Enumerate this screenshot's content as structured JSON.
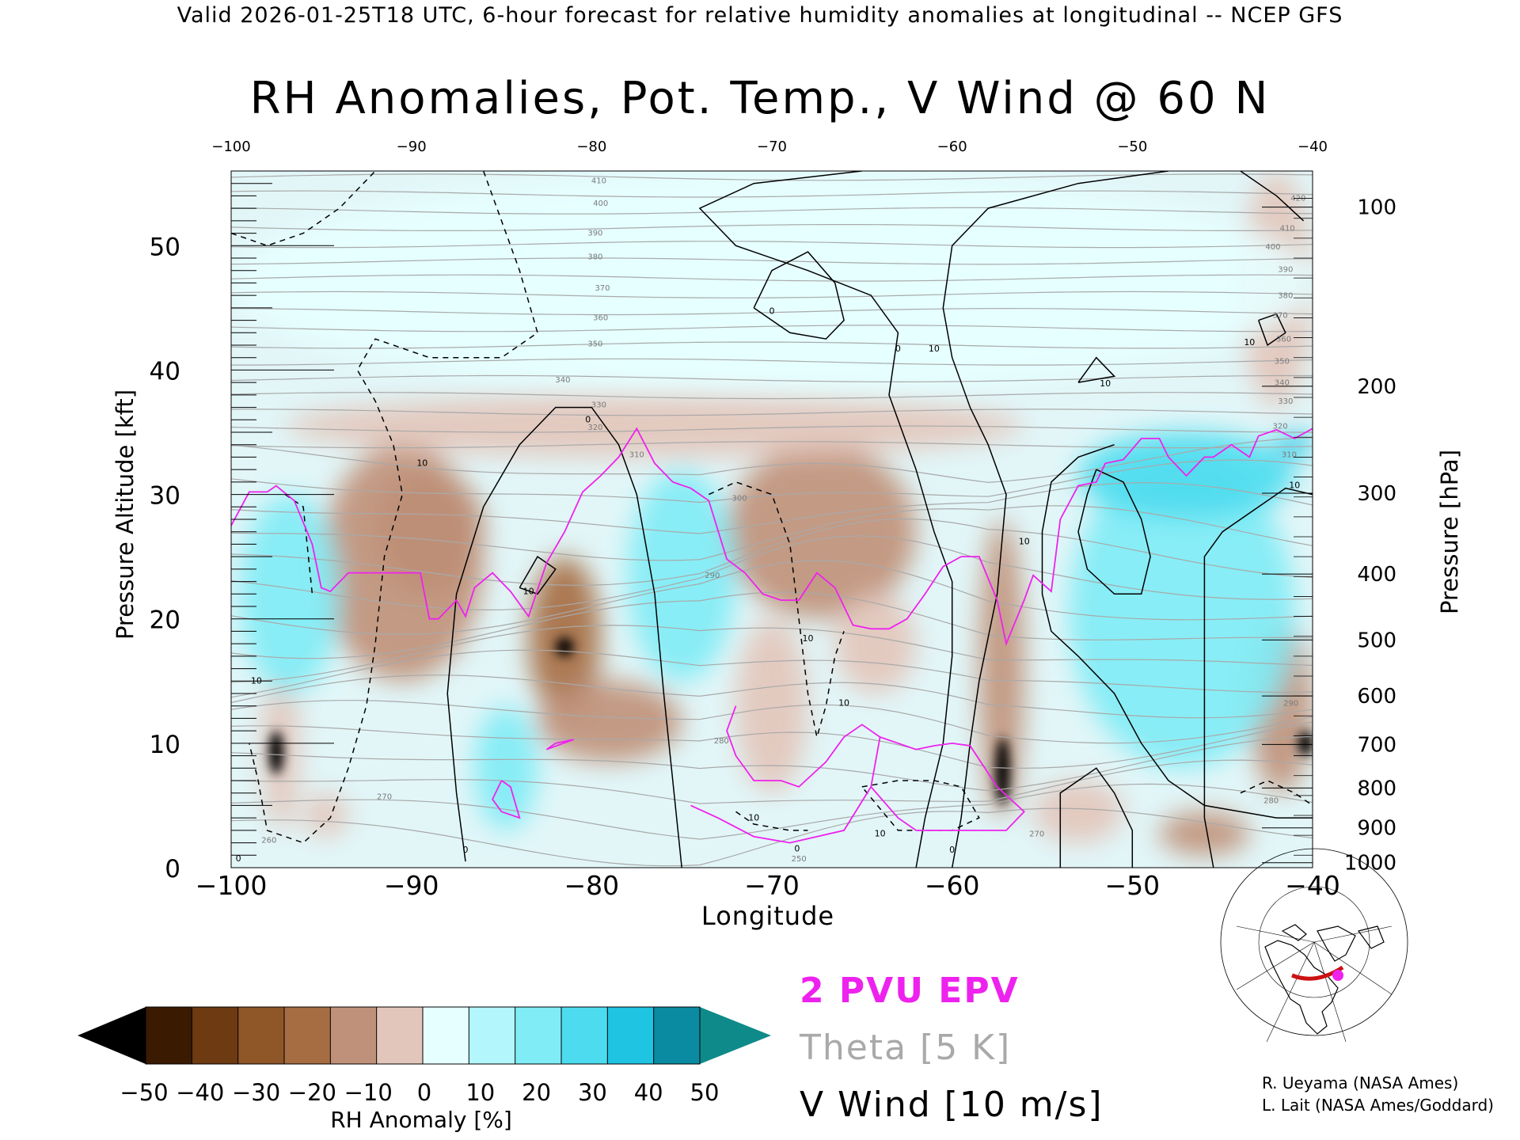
{
  "header": {
    "valid_line": "Valid 2026-01-25T18 UTC, 6-hour forecast for relative humidity anomalies at longitudinal -- NCEP GFS",
    "title": "RH Anomalies, Pot. Temp., V Wind @ 60 N"
  },
  "chart_data": {
    "type": "heatmap",
    "title": "RH Anomalies, Pot. Temp., V Wind @ 60 N",
    "xlabel": "Longitude",
    "ylabel": "Pressure Altitude [kft]",
    "ylabel_right": "Pressure [hPa]",
    "xlim": [
      -100,
      -40
    ],
    "ylim": [
      0,
      56
    ],
    "x_ticks": [
      -100,
      -90,
      -80,
      -70,
      -60,
      -50,
      -40
    ],
    "x_tick_labels": [
      "−100",
      "−90",
      "−80",
      "−70",
      "−60",
      "−50",
      "−40"
    ],
    "y_ticks": [
      0,
      10,
      20,
      30,
      40,
      50
    ],
    "y_tick_labels": [
      "0",
      "10",
      "20",
      "30",
      "40",
      "50"
    ],
    "pressure_ticks": [
      {
        "hPa": "100",
        "kft": 53.1
      },
      {
        "hPa": "200",
        "kft": 38.7
      },
      {
        "hPa": "300",
        "kft": 30.1
      },
      {
        "hPa": "400",
        "kft": 23.6
      },
      {
        "hPa": "500",
        "kft": 18.3
      },
      {
        "hPa": "600",
        "kft": 13.8
      },
      {
        "hPa": "700",
        "kft": 9.9
      },
      {
        "hPa": "800",
        "kft": 6.4
      },
      {
        "hPa": "900",
        "kft": 3.2
      },
      {
        "hPa": "1000",
        "kft": 0.4
      }
    ],
    "rh_anomaly_regions": [
      {
        "value": -50,
        "lon": [
          -97.9,
          -97.1
        ],
        "alt": [
          7.5,
          11.0
        ]
      },
      {
        "value": -50,
        "lon": [
          -82.0,
          -81.0
        ],
        "alt": [
          17.0,
          18.5
        ]
      },
      {
        "value": -50,
        "lon": [
          -57.6,
          -56.8
        ],
        "alt": [
          5.0,
          10.5
        ]
      },
      {
        "value": -50,
        "lon": [
          -40.8,
          -40.0
        ],
        "alt": [
          9.0,
          11.0
        ]
      },
      {
        "value": -30,
        "lon": [
          -92.0,
          -86.0
        ],
        "alt": [
          22.0,
          32.0
        ]
      },
      {
        "value": -30,
        "lon": [
          -83.5,
          -79.5
        ],
        "alt": [
          12.0,
          25.0
        ]
      },
      {
        "value": -20,
        "lon": [
          -95.0,
          -86.0
        ],
        "alt": [
          15.0,
          34.0
        ]
      },
      {
        "value": -20,
        "lon": [
          -83.0,
          -75.0
        ],
        "alt": [
          8.5,
          15.0
        ]
      },
      {
        "value": -20,
        "lon": [
          -72.5,
          -62.0
        ],
        "alt": [
          20.0,
          34.0
        ]
      },
      {
        "value": -20,
        "lon": [
          -58.5,
          -56.0
        ],
        "alt": [
          4.0,
          28.0
        ]
      },
      {
        "value": -20,
        "lon": [
          -43.5,
          -40.0
        ],
        "alt": [
          6.0,
          20.0
        ]
      },
      {
        "value": -20,
        "lon": [
          -48.5,
          -43.5
        ],
        "alt": [
          1.0,
          4.5
        ]
      },
      {
        "value": -10,
        "lon": [
          -98.3,
          -96.2
        ],
        "alt": [
          3.0,
          16.0
        ]
      },
      {
        "value": -10,
        "lon": [
          -96.0,
          -93.5
        ],
        "alt": [
          2.5,
          6.0
        ]
      },
      {
        "value": -10,
        "lon": [
          -72.0,
          -68.0
        ],
        "alt": [
          6.0,
          20.0
        ]
      },
      {
        "value": -10,
        "lon": [
          -66.5,
          -62.0
        ],
        "alt": [
          14.0,
          22.0
        ]
      },
      {
        "value": -10,
        "lon": [
          -55.5,
          -50.5
        ],
        "alt": [
          2.0,
          7.0
        ]
      },
      {
        "value": -5,
        "lon": [
          -97.0,
          -56.0
        ],
        "alt": [
          33.0,
          38.0
        ]
      },
      {
        "value": -5,
        "lon": [
          -44.0,
          -40.0
        ],
        "alt": [
          37.0,
          56.0
        ]
      },
      {
        "value": 5,
        "lon": [
          -100.0,
          -40.0
        ],
        "alt": [
          38.0,
          56.0
        ]
      },
      {
        "value": 20,
        "lon": [
          -78.0,
          -72.0
        ],
        "alt": [
          15.0,
          32.0
        ]
      },
      {
        "value": 20,
        "lon": [
          -86.5,
          -83.0
        ],
        "alt": [
          3.0,
          13.0
        ]
      },
      {
        "value": 20,
        "lon": [
          -53.5,
          -41.0
        ],
        "alt": [
          8.0,
          33.0
        ]
      },
      {
        "value": 20,
        "lon": [
          -99.5,
          -94.0
        ],
        "alt": [
          14.0,
          30.0
        ]
      },
      {
        "value": 30,
        "lon": [
          -53.0,
          -41.0
        ],
        "alt": [
          28.0,
          35.0
        ]
      },
      {
        "value": 40,
        "lon": [
          -42.0,
          -40.0
        ],
        "alt": [
          33.0,
          35.0
        ]
      }
    ],
    "theta_contour_labels": [
      {
        "text": "410",
        "lon": -79.6,
        "alt": 55.0
      },
      {
        "text": "400",
        "lon": -79.5,
        "alt": 53.2
      },
      {
        "text": "390",
        "lon": -79.8,
        "alt": 50.8
      },
      {
        "text": "380",
        "lon": -79.8,
        "alt": 48.9
      },
      {
        "text": "370",
        "lon": -79.4,
        "alt": 46.4
      },
      {
        "text": "360",
        "lon": -79.5,
        "alt": 44.0
      },
      {
        "text": "350",
        "lon": -79.8,
        "alt": 41.9
      },
      {
        "text": "340",
        "lon": -81.6,
        "alt": 39.0
      },
      {
        "text": "330",
        "lon": -79.6,
        "alt": 37.0
      },
      {
        "text": "320",
        "lon": -79.8,
        "alt": 35.2
      },
      {
        "text": "310",
        "lon": -77.5,
        "alt": 33.0
      },
      {
        "text": "300",
        "lon": -71.8,
        "alt": 29.5
      },
      {
        "text": "290",
        "lon": -73.3,
        "alt": 23.3
      },
      {
        "text": "280",
        "lon": -72.8,
        "alt": 10.0
      },
      {
        "text": "270",
        "lon": -91.5,
        "alt": 5.5
      },
      {
        "text": "260",
        "lon": -97.9,
        "alt": 2.0
      },
      {
        "text": "250",
        "lon": -68.5,
        "alt": 0.5
      },
      {
        "text": "270",
        "lon": -55.3,
        "alt": 2.5
      },
      {
        "text": "280",
        "lon": -42.3,
        "alt": 5.2
      },
      {
        "text": "290",
        "lon": -41.2,
        "alt": 13.0
      },
      {
        "text": "310",
        "lon": -41.3,
        "alt": 33.0
      },
      {
        "text": "320",
        "lon": -41.8,
        "alt": 35.3
      },
      {
        "text": "330",
        "lon": -41.5,
        "alt": 37.3
      },
      {
        "text": "340",
        "lon": -41.7,
        "alt": 38.8
      },
      {
        "text": "350",
        "lon": -41.7,
        "alt": 40.5
      },
      {
        "text": "360",
        "lon": -41.6,
        "alt": 42.3
      },
      {
        "text": "370",
        "lon": -41.8,
        "alt": 44.2
      },
      {
        "text": "380",
        "lon": -41.5,
        "alt": 45.8
      },
      {
        "text": "390",
        "lon": -41.5,
        "alt": 47.9
      },
      {
        "text": "400",
        "lon": -42.2,
        "alt": 49.7
      },
      {
        "text": "410",
        "lon": -41.4,
        "alt": 51.2
      },
      {
        "text": "420",
        "lon": -40.8,
        "alt": 53.6
      }
    ],
    "vwind_contour_labels": [
      {
        "text": "0",
        "lon": -70.0,
        "alt": 44.5
      },
      {
        "text": "0",
        "lon": -63.0,
        "alt": 41.5
      },
      {
        "text": "0",
        "lon": -80.2,
        "alt": 35.8
      },
      {
        "text": "10",
        "lon": -61.0,
        "alt": 41.5
      },
      {
        "text": "10",
        "lon": -51.5,
        "alt": 38.7
      },
      {
        "text": "10",
        "lon": -43.5,
        "alt": 42.0
      },
      {
        "text": "10",
        "lon": -89.4,
        "alt": 32.3
      },
      {
        "text": "10",
        "lon": -83.5,
        "alt": 22.0
      },
      {
        "text": "10",
        "lon": -68.0,
        "alt": 18.2
      },
      {
        "text": "10",
        "lon": -66.0,
        "alt": 13.0
      },
      {
        "text": "10",
        "lon": -98.6,
        "alt": 14.8
      },
      {
        "text": "10",
        "lon": -56.0,
        "alt": 26.0
      },
      {
        "text": "10",
        "lon": -41.0,
        "alt": 30.5
      },
      {
        "text": "10",
        "lon": -71.0,
        "alt": 3.8
      },
      {
        "text": "10",
        "lon": -64.0,
        "alt": 2.5
      },
      {
        "text": "0",
        "lon": -68.6,
        "alt": 1.3
      },
      {
        "text": "0",
        "lon": -60.0,
        "alt": 1.2
      },
      {
        "text": "0",
        "lon": -87.0,
        "alt": 1.2
      },
      {
        "text": "0",
        "lon": -99.6,
        "alt": 0.5
      }
    ],
    "epv_2pvu_line": [
      [
        -100,
        27.5
      ],
      [
        -99,
        30.2
      ],
      [
        -98,
        30.2
      ],
      [
        -97.5,
        30.7
      ],
      [
        -96.5,
        29.5
      ],
      [
        -95.5,
        26
      ],
      [
        -95,
        22.5
      ],
      [
        -94.5,
        22.2
      ],
      [
        -93.5,
        23.7
      ],
      [
        -92.5,
        23.7
      ],
      [
        -91.5,
        23.7
      ],
      [
        -90.5,
        23.7
      ],
      [
        -89.5,
        23.7
      ],
      [
        -89,
        20
      ],
      [
        -88.5,
        20
      ],
      [
        -87.5,
        21.5
      ],
      [
        -87,
        20.2
      ],
      [
        -86.5,
        22.5
      ],
      [
        -85.5,
        23.7
      ],
      [
        -84.5,
        22.2
      ],
      [
        -83.5,
        20.2
      ],
      [
        -82.5,
        24.5
      ],
      [
        -81.5,
        27
      ],
      [
        -80.5,
        30.2
      ],
      [
        -79.5,
        31.5
      ],
      [
        -78.5,
        33
      ],
      [
        -77.5,
        35.3
      ],
      [
        -76.5,
        32.5
      ],
      [
        -75.5,
        31
      ],
      [
        -74.5,
        30.5
      ],
      [
        -73.5,
        29.5
      ],
      [
        -72.5,
        24.8
      ],
      [
        -71.5,
        23.7
      ],
      [
        -70.5,
        22
      ],
      [
        -69.5,
        21.5
      ],
      [
        -68.5,
        21.5
      ],
      [
        -67.5,
        23.7
      ],
      [
        -66.5,
        22.5
      ],
      [
        -65.5,
        19.5
      ],
      [
        -64.5,
        19.2
      ],
      [
        -63.5,
        19.2
      ],
      [
        -62.5,
        20
      ],
      [
        -61.5,
        22
      ],
      [
        -60.5,
        24.2
      ],
      [
        -59.5,
        25
      ],
      [
        -58.5,
        25
      ],
      [
        -57.5,
        21.5
      ],
      [
        -57,
        18
      ],
      [
        -56,
        21.5
      ],
      [
        -55.5,
        23.5
      ],
      [
        -54.5,
        22.2
      ],
      [
        -54,
        28
      ],
      [
        -53,
        30.7
      ],
      [
        -52,
        31
      ],
      [
        -51.5,
        32.5
      ],
      [
        -50.5,
        32.8
      ],
      [
        -49.5,
        34.5
      ],
      [
        -48.5,
        34.5
      ],
      [
        -48,
        33
      ],
      [
        -47,
        31.5
      ],
      [
        -46,
        33
      ],
      [
        -45.5,
        33
      ],
      [
        -44.5,
        34
      ],
      [
        -43.5,
        33
      ],
      [
        -43,
        34.7
      ],
      [
        -42,
        35.2
      ],
      [
        -41,
        34.5
      ],
      [
        -40,
        35.3
      ]
    ],
    "epv_2pvu_line_2": [
      [
        -74.5,
        5
      ],
      [
        -73,
        4
      ],
      [
        -71,
        2.5
      ],
      [
        -69,
        2
      ],
      [
        -66,
        3
      ],
      [
        -64.5,
        6.5
      ],
      [
        -64,
        10.5
      ],
      [
        -62,
        9.5
      ],
      [
        -61,
        9.8
      ],
      [
        -60,
        10
      ],
      [
        -59,
        9.8
      ],
      [
        -57.5,
        6.5
      ],
      [
        -56,
        4.5
      ],
      [
        -57,
        3
      ],
      [
        -60,
        3
      ],
      [
        -62,
        3
      ],
      [
        -63,
        4
      ],
      [
        -64.5,
        6.5
      ],
      [
        -64,
        10.5
      ],
      [
        -65,
        11.5
      ],
      [
        -66,
        10.5
      ],
      [
        -67,
        8.5
      ],
      [
        -68.5,
        6.5
      ],
      [
        -69.5,
        7
      ],
      [
        -71,
        7
      ],
      [
        -72,
        9
      ],
      [
        -72.5,
        11
      ],
      [
        -72,
        13
      ]
    ],
    "epv_small_loops": [
      [
        [
          -82,
          10
        ],
        [
          -81,
          10.3
        ],
        [
          -82.5,
          9.5
        ],
        [
          -82,
          10
        ]
      ],
      [
        [
          -85,
          7
        ],
        [
          -84.5,
          6.5
        ],
        [
          -84,
          4
        ],
        [
          -85,
          4.5
        ],
        [
          -85.5,
          5.5
        ],
        [
          -85,
          7
        ]
      ]
    ]
  },
  "colorbar": {
    "label": "RH Anomaly [%]",
    "tick_labels": [
      "−50",
      "−40",
      "−30",
      "−20",
      "−10",
      "0",
      "10",
      "20",
      "30",
      "40",
      "50"
    ],
    "colors": [
      "#3a1a00",
      "#6e3a12",
      "#8f5628",
      "#a66d42",
      "#c0917a",
      "#e3c6bb",
      "#e6ffff",
      "#b3f6fb",
      "#80ecf5",
      "#4ddcef",
      "#1fc4e3",
      "#0b8ba2"
    ],
    "low_extend_color": "#000000",
    "high_extend_color": "#0f8a8a"
  },
  "legend": {
    "epv": "2 PVU EPV",
    "theta": "Theta [5 K]",
    "vwind": "V Wind [10 m/s]",
    "epv_color": "#ee22ee",
    "theta_color": "#a9a9a9"
  },
  "credits": {
    "line1": "R. Ueyama (NASA Ames)",
    "line2": "L. Lait (NASA Ames/Goddard)"
  }
}
